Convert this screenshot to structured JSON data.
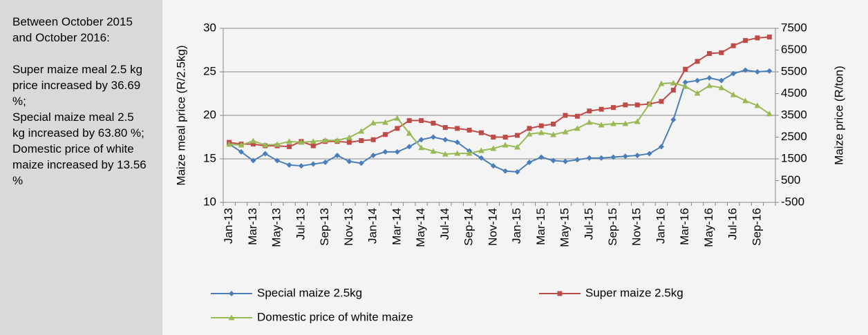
{
  "side_panel": {
    "intro": "Between October 2015 and October 2016:",
    "items": [
      "Super maize meal 2.5 kg price increased by 36.69 %;",
      "Special maize meal 2.5 kg increased by 63.80 %;",
      "Domestic price of white maize increased by 13.56 %"
    ]
  },
  "chart_data": {
    "type": "line",
    "y_label": "Maize meal price (R/2.5kg)",
    "y2_label": "Maize price (R/ton)",
    "categories": [
      "Jan-13",
      null,
      "Mar-13",
      null,
      "May-13",
      null,
      "Jul-13",
      null,
      "Sep-13",
      null,
      "Nov-13",
      null,
      "Jan-14",
      null,
      "Mar-14",
      null,
      "May-14",
      null,
      "Jul-14",
      null,
      "Sep-14",
      null,
      "Nov-14",
      null,
      "Jan-15",
      null,
      "Mar-15",
      null,
      "May-15",
      null,
      "Jul-15",
      null,
      "Sep-15",
      null,
      "Nov-15",
      null,
      "Jan-16",
      null,
      "Mar-16",
      null,
      "May-16",
      null,
      "Jul-16",
      null,
      "Sep-16",
      null
    ],
    "series": [
      {
        "name": "Special maize 2.5kg",
        "color": "#4a7ebb",
        "marker": "diamond",
        "axis": "y",
        "values": [
          16.7,
          15.8,
          14.8,
          15.6,
          14.8,
          14.3,
          14.2,
          14.4,
          14.6,
          15.4,
          14.7,
          14.5,
          15.4,
          15.8,
          15.8,
          16.4,
          17.2,
          17.5,
          17.2,
          16.9,
          15.9,
          15.1,
          14.2,
          13.6,
          13.5,
          14.6,
          15.2,
          14.8,
          14.7,
          14.9,
          15.1,
          15.1,
          15.2,
          15.3,
          15.4,
          15.6,
          16.4,
          19.5,
          23.8,
          24.0,
          24.3,
          24.0,
          24.8,
          25.2,
          25.0,
          25.1
        ]
      },
      {
        "name": "Super maize 2.5kg",
        "color": "#be4b48",
        "marker": "square",
        "axis": "y",
        "values": [
          16.9,
          16.7,
          16.7,
          16.5,
          16.5,
          16.4,
          17.0,
          16.5,
          17.0,
          17.0,
          16.9,
          17.1,
          17.2,
          17.8,
          18.5,
          19.4,
          19.4,
          19.1,
          18.6,
          18.5,
          18.3,
          18.0,
          17.5,
          17.5,
          17.7,
          18.5,
          18.8,
          19.0,
          20.0,
          19.9,
          20.5,
          20.7,
          20.9,
          21.2,
          21.2,
          21.3,
          21.6,
          22.9,
          25.3,
          26.2,
          27.1,
          27.2,
          28.0,
          28.6,
          28.9,
          29.0
        ]
      },
      {
        "name": "Domestic price of white maize",
        "color": "#98b954",
        "marker": "triangle",
        "axis": "y2",
        "values": [
          2170,
          2135,
          2325,
          2135,
          2165,
          2300,
          2260,
          2300,
          2350,
          2350,
          2480,
          2770,
          3150,
          3180,
          3370,
          2675,
          2010,
          1850,
          1720,
          1750,
          1750,
          1880,
          1975,
          2135,
          2040,
          2640,
          2705,
          2610,
          2740,
          2900,
          3180,
          3055,
          3120,
          3120,
          3215,
          4010,
          4960,
          4990,
          4830,
          4515,
          4865,
          4770,
          4450,
          4170,
          3950,
          3570
        ]
      }
    ],
    "ylim": [
      10,
      30
    ],
    "yticks": [
      10,
      15,
      20,
      25,
      30
    ],
    "y2lim": [
      -500,
      7500
    ],
    "y2ticks": [
      -500,
      500,
      1500,
      2500,
      3500,
      4500,
      5500,
      6500,
      7500
    ],
    "grid": true,
    "legend": "bottom"
  }
}
